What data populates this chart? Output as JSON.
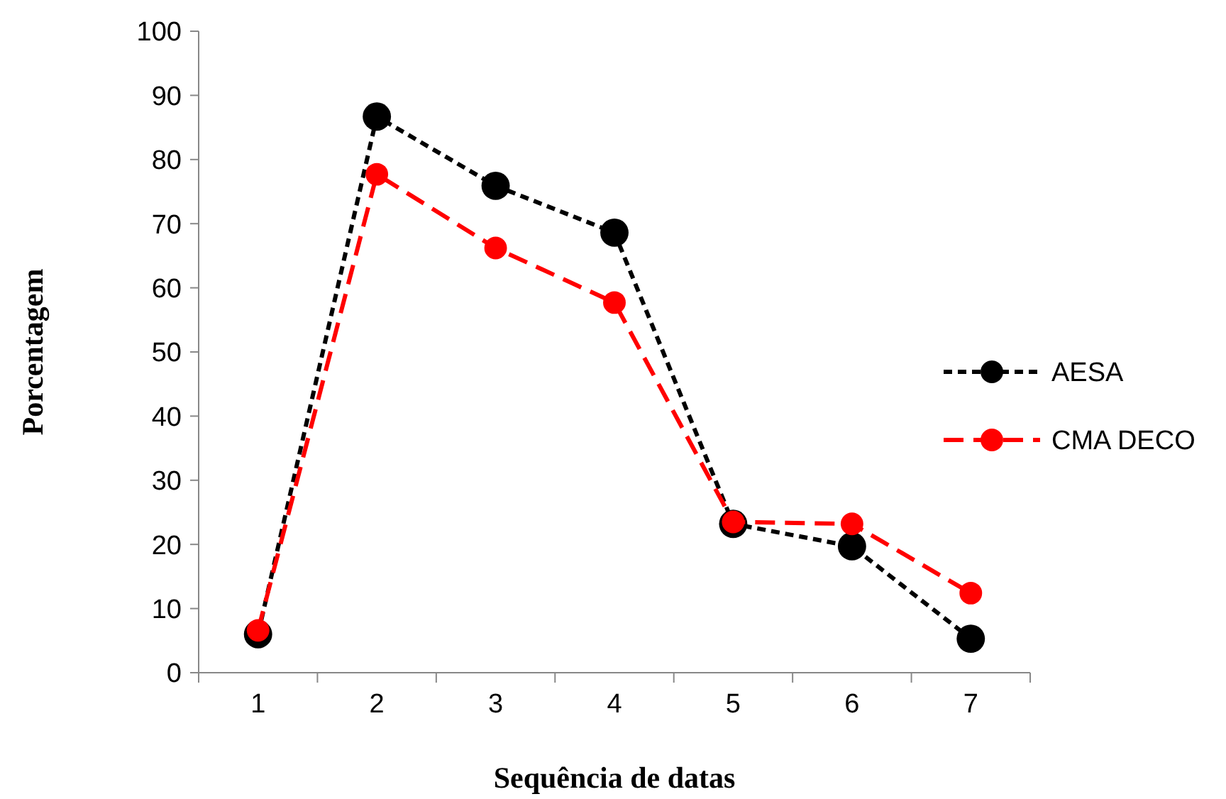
{
  "chart_data": {
    "type": "line",
    "xlabel": "Sequência de datas",
    "ylabel": "Porcentagem",
    "categories": [
      "1",
      "2",
      "3",
      "4",
      "5",
      "6",
      "7"
    ],
    "series": [
      {
        "name": "AESA",
        "color": "#000000",
        "line_style": "dotted",
        "values": [
          6.0,
          86.7,
          75.9,
          68.6,
          23.2,
          19.7,
          5.3
        ]
      },
      {
        "name": "CMA DECO",
        "color": "#ff0000",
        "line_style": "dashed",
        "values": [
          6.6,
          77.7,
          66.2,
          57.7,
          23.5,
          23.2,
          12.4
        ]
      }
    ],
    "ylim": [
      0,
      100
    ],
    "yticks": [
      0,
      10,
      20,
      30,
      40,
      50,
      60,
      70,
      80,
      90,
      100
    ],
    "marker": "circle",
    "legend": "right",
    "grid": false
  }
}
